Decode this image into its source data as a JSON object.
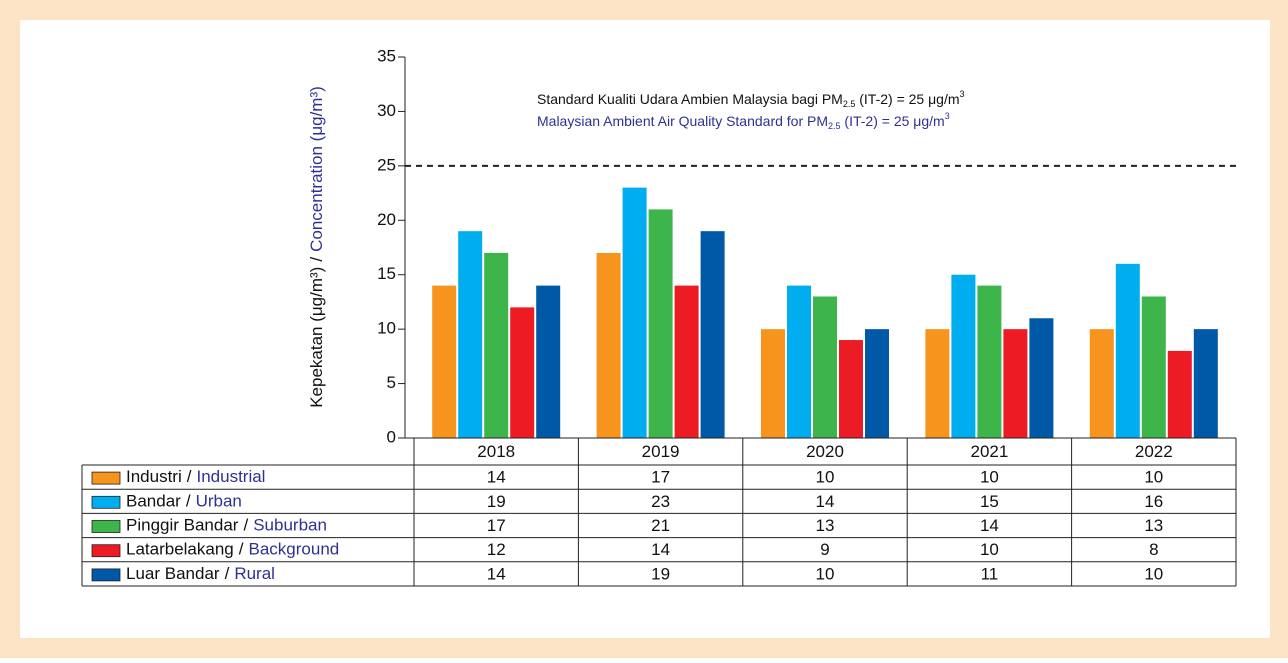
{
  "chart_data": {
    "type": "bar",
    "y_label": [
      "Kepekatan (μg/m³)",
      "Concentration (μg/m³)"
    ],
    "separator": "/",
    "annotation": [
      [
        "Standard Kualiti Udara Ambien Malaysia bagi PM",
        "2.5",
        " (IT-2) = 25 μg/m",
        "3"
      ],
      [
        "Malaysian Ambient Air Quality Standard for PM",
        "2.5",
        " (IT-2) = 25 μg/m",
        "3"
      ]
    ],
    "reference_line": 25,
    "categories": [
      "2018",
      "2019",
      "2020",
      "2021",
      "2022"
    ],
    "series": [
      {
        "name": [
          "Industri",
          "Industrial"
        ],
        "color": "#f7941d",
        "values": [
          14,
          17,
          10,
          10,
          10
        ]
      },
      {
        "name": [
          "Bandar",
          "Urban"
        ],
        "color": "#00aeef",
        "values": [
          19,
          23,
          14,
          15,
          16
        ]
      },
      {
        "name": [
          "Pinggir Bandar",
          "Suburban"
        ],
        "color": "#3db54a",
        "values": [
          17,
          21,
          13,
          14,
          13
        ]
      },
      {
        "name": [
          "Latarbelakang",
          "Background"
        ],
        "color": "#ed1c24",
        "values": [
          12,
          14,
          9,
          10,
          8
        ]
      },
      {
        "name": [
          "Luar Bandar",
          "Rural"
        ],
        "color": "#0059a6",
        "values": [
          14,
          19,
          10,
          11,
          10
        ]
      }
    ],
    "ylim": [
      0,
      35
    ],
    "yticks": [
      0,
      5,
      10,
      15,
      20,
      25,
      30,
      35
    ]
  }
}
